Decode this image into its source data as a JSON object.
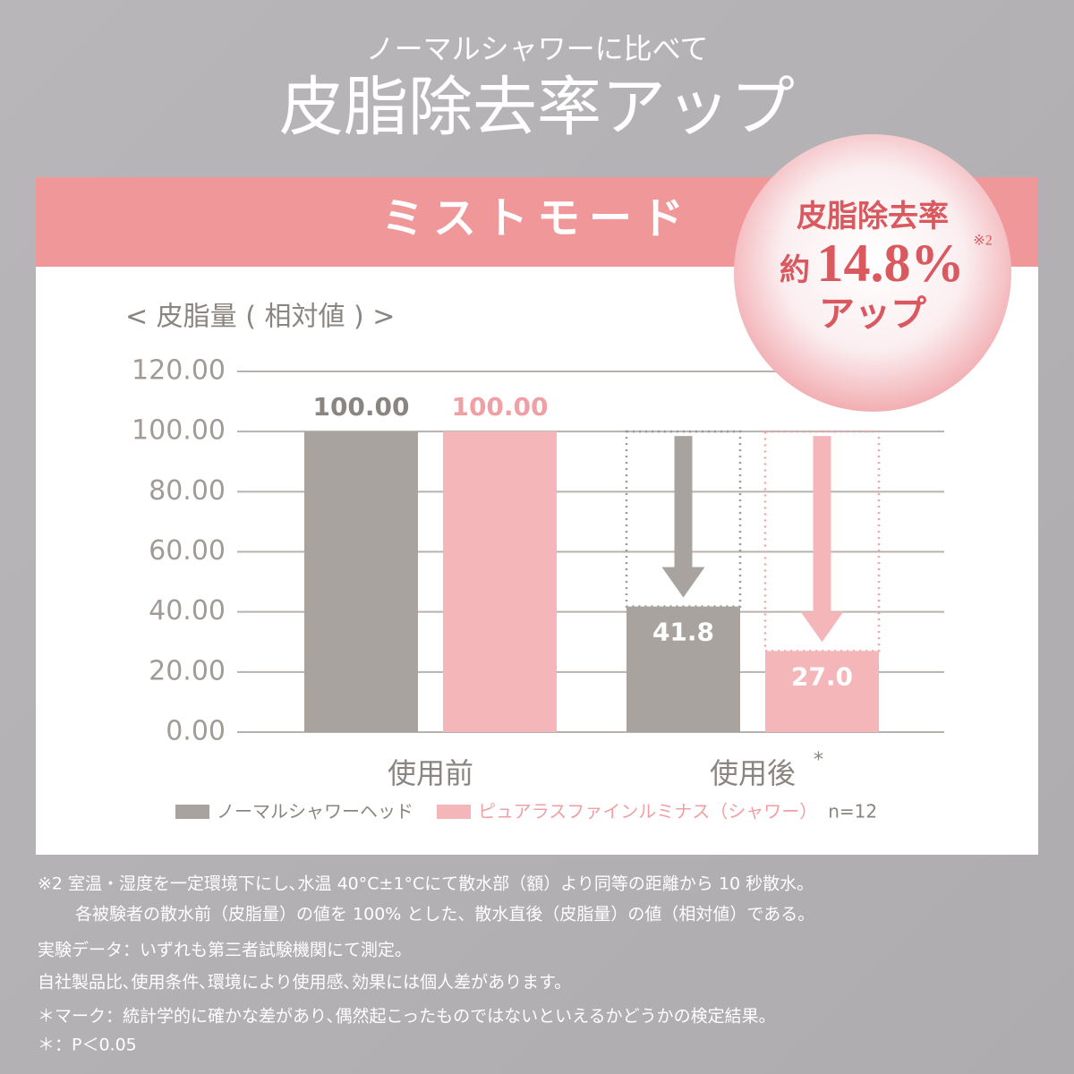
{
  "header": {
    "lead": "ノーマルシャワーに比べて",
    "title": "皮脂除去率アップ",
    "mode": "ミストモード"
  },
  "badge": {
    "line1": "皮脂除去率",
    "prefix": "約",
    "figure": "14.8%",
    "note": "※2",
    "line3": "アップ"
  },
  "chart_data": {
    "type": "bar",
    "y_label": "< 皮脂量 ( 相対値 ) >",
    "categories": [
      "使用前",
      "使用後"
    ],
    "category_mark": "*",
    "series": [
      {
        "name": "ノーマルシャワーヘッド",
        "color": "#a8a39e",
        "values": [
          100,
          41.8
        ],
        "value_labels": [
          "100.00",
          "41.8"
        ]
      },
      {
        "name": "ピュアラスファインルミナス（シャワー）",
        "color": "#f4b6b8",
        "values": [
          100,
          27.0
        ],
        "value_labels": [
          "100.00",
          "27.0"
        ]
      }
    ],
    "sample_note": "n=12",
    "ylim": [
      0,
      120
    ],
    "yticks": [
      {
        "value": 0,
        "label": "0.00"
      },
      {
        "value": 20,
        "label": "20.00"
      },
      {
        "value": 40,
        "label": "40.00"
      },
      {
        "value": 60,
        "label": "60.00"
      },
      {
        "value": 80,
        "label": "80.00"
      },
      {
        "value": 100,
        "label": "100.00"
      },
      {
        "value": 120,
        "label": "120.00"
      }
    ],
    "grid": true
  },
  "footnotes": [
    "※2 室温・湿度を一定環境下にし､水温 40°C±1°Cにて散水部（額）より同等の距離から 10 秒散水。",
    "各被験者の散水前（皮脂量）の値を 100% とした、散水直後（皮脂量）の値（相対値）である。",
    "実験データ：いずれも第三者試験機関にて測定。",
    "自社製品比､使用条件､環境により使用感､効果には個人差があります。",
    "＊マーク：統計学的に確かな差があり､偶然起こったものではないといえるかどうかの検定結果。",
    "＊：P＜0.05"
  ]
}
